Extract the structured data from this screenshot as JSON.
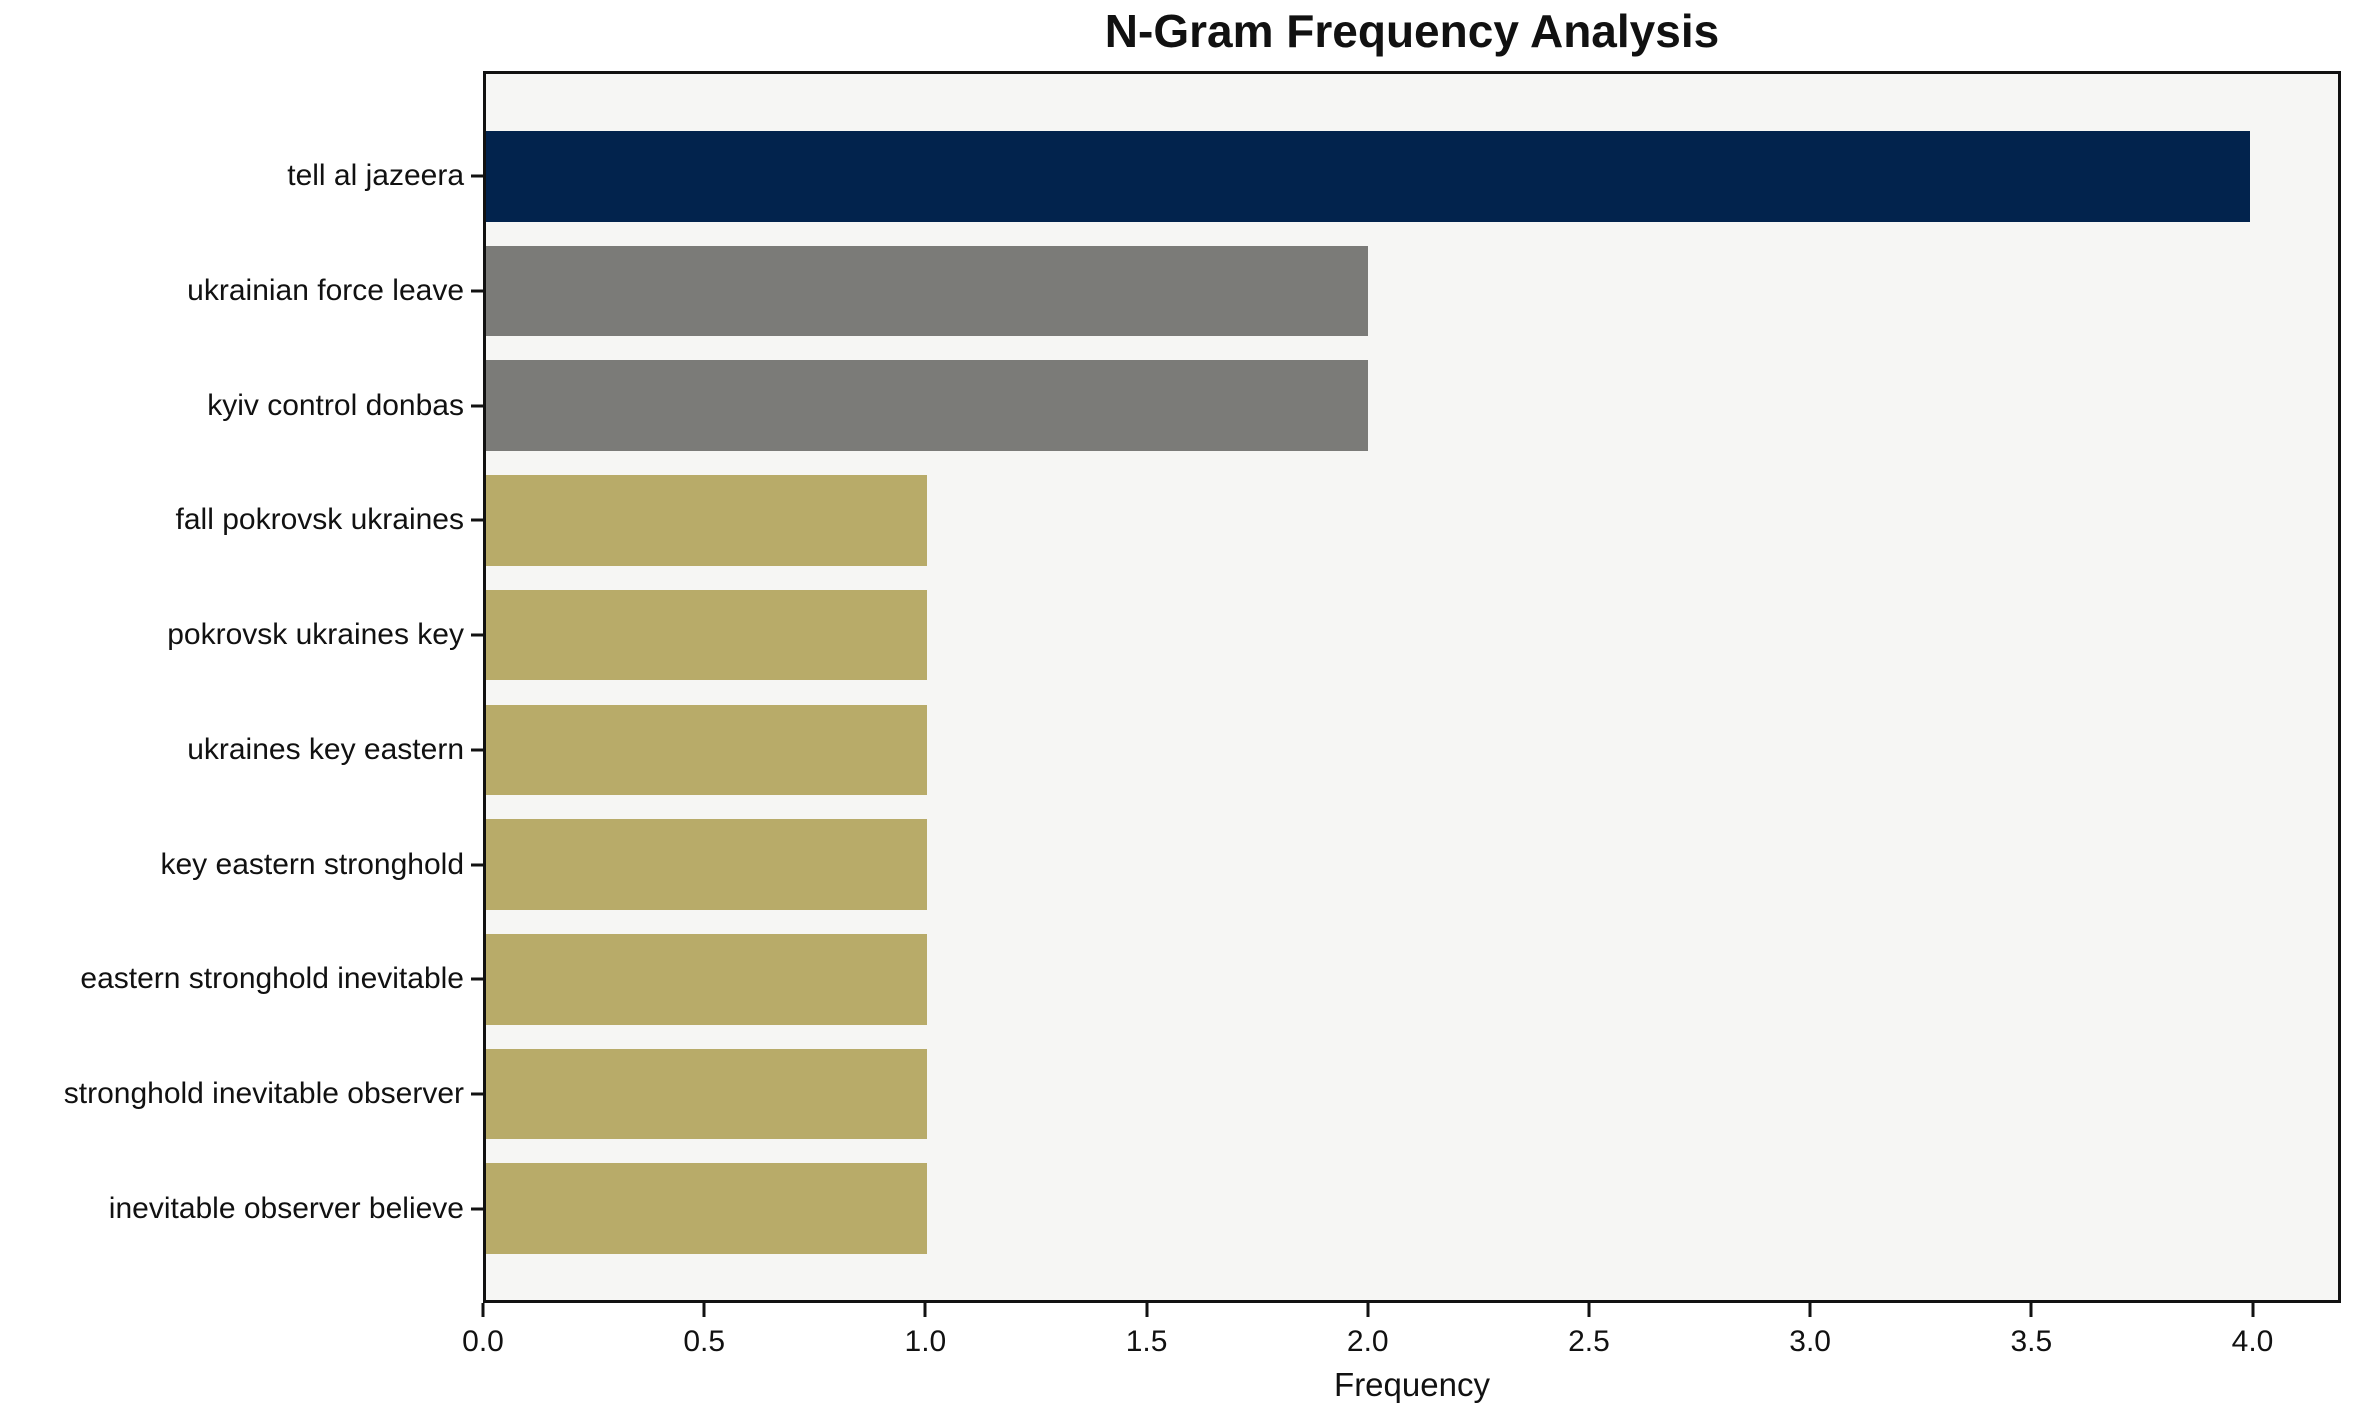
{
  "chart_data": {
    "type": "bar",
    "orientation": "horizontal",
    "title": "N-Gram Frequency Analysis",
    "xlabel": "Frequency",
    "ylabel": "",
    "grid": false,
    "legend": null,
    "categories": [
      "tell al jazeera",
      "ukrainian force leave",
      "kyiv control donbas",
      "fall pokrovsk ukraines",
      "pokrovsk ukraines key",
      "ukraines key eastern",
      "key eastern stronghold",
      "eastern stronghold inevitable",
      "stronghold inevitable observer",
      "inevitable observer believe"
    ],
    "values": [
      4,
      2,
      2,
      1,
      1,
      1,
      1,
      1,
      1,
      1
    ],
    "bar_colors": [
      "#02234d",
      "#7b7b78",
      "#7b7b78",
      "#b8ab69",
      "#b8ab69",
      "#b8ab69",
      "#b8ab69",
      "#b8ab69",
      "#b8ab69",
      "#b8ab69"
    ],
    "xlim": [
      0,
      4.2
    ],
    "xticks": [
      0.0,
      0.5,
      1.0,
      1.5,
      2.0,
      2.5,
      3.0,
      3.5,
      4.0
    ],
    "xtick_labels": [
      "0.0",
      "0.5",
      "1.0",
      "1.5",
      "2.0",
      "2.5",
      "3.0",
      "3.5",
      "4.0"
    ],
    "colors": {
      "plot_background": "#f6f6f4",
      "figure_background": "#ffffff",
      "spine": "#111111",
      "text": "#111111",
      "bar_top": "#02234d",
      "bar_mid": "#7b7b78",
      "bar_low": "#b8ab69"
    }
  }
}
